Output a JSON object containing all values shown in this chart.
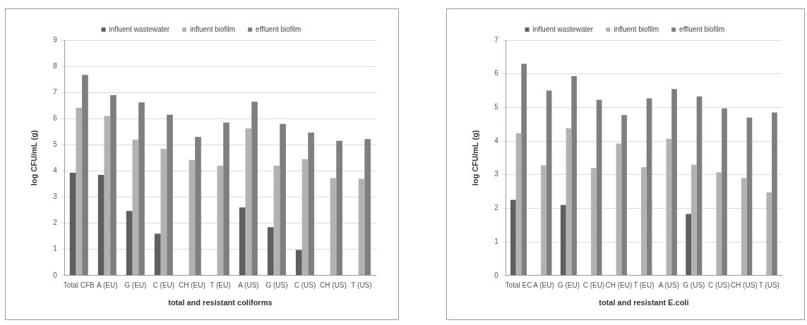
{
  "chart_data": [
    {
      "type": "bar",
      "xlabel": "total and resistant coliforms",
      "ylabel": "log CFU/mL (g)",
      "categories": [
        "Total CFB",
        "A (EU)",
        "G (EU)",
        "C (EU)",
        "CH (EU)",
        "T (EU)",
        "A (US)",
        "G (US)",
        "C (US)",
        "CH (US)",
        "T (US)"
      ],
      "series": [
        {
          "name": "influent wastewater",
          "color": "#5f5f5f",
          "values": [
            3.93,
            3.85,
            2.47,
            1.6,
            null,
            null,
            2.6,
            1.85,
            0.98,
            null,
            null
          ]
        },
        {
          "name": "influent biofilm",
          "color": "#b2b2b2",
          "values": [
            6.42,
            6.1,
            5.2,
            4.85,
            4.42,
            4.2,
            5.62,
            4.2,
            4.45,
            3.72,
            3.7
          ]
        },
        {
          "name": "effluent biofilm",
          "color": "#7f7f7f",
          "values": [
            7.67,
            6.9,
            6.62,
            6.15,
            5.3,
            5.85,
            6.65,
            5.8,
            5.47,
            5.15,
            5.22
          ]
        }
      ],
      "ylim": [
        0,
        9
      ],
      "yticks": [
        0,
        1,
        2,
        3,
        4,
        5,
        6,
        7,
        8,
        9
      ],
      "grid": "y",
      "legend": "top"
    },
    {
      "type": "bar",
      "xlabel": "total and resistant E.coli",
      "ylabel": "log CFU/mL (g)",
      "categories": [
        "Total EC",
        "A (EU)",
        "G (EU)",
        "C (EU)",
        "CH (EU)",
        "T (EU)",
        "A (US)",
        "G (US)",
        "C (US)",
        "CH (US)",
        "T (US)"
      ],
      "series": [
        {
          "name": "influent wastewater",
          "color": "#5f5f5f",
          "values": [
            2.25,
            null,
            2.1,
            null,
            null,
            null,
            null,
            1.83,
            null,
            null,
            null
          ]
        },
        {
          "name": "influent biofilm",
          "color": "#b2b2b2",
          "values": [
            4.23,
            3.28,
            4.38,
            3.2,
            3.93,
            3.22,
            4.07,
            3.3,
            3.07,
            2.9,
            2.47
          ]
        },
        {
          "name": "effluent biofilm",
          "color": "#7f7f7f",
          "values": [
            6.3,
            5.5,
            5.93,
            5.23,
            4.77,
            5.27,
            5.55,
            5.33,
            4.97,
            4.7,
            4.85
          ]
        }
      ],
      "ylim": [
        0,
        7
      ],
      "yticks": [
        0,
        1,
        2,
        3,
        4,
        5,
        6,
        7
      ],
      "grid": "y",
      "legend": "top"
    }
  ]
}
